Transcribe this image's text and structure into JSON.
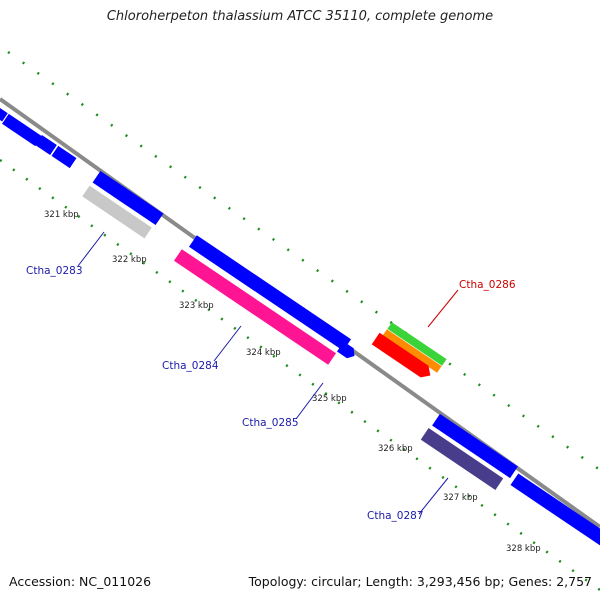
{
  "title": "Chloroherpeton thalassium ATCC 35110, complete genome",
  "footer": {
    "accession": "Accession: NC_011026",
    "stats": "Topology: circular; Length: 3,293,456 bp; Genes: 2,757"
  },
  "ticks": [
    "321 kbp",
    "322 kbp",
    "323 kbp",
    "324 kbp",
    "325 kbp",
    "326 kbp",
    "327 kbp",
    "328 kbp"
  ],
  "gene_labels": [
    {
      "name": "Ctha_0283",
      "color": "#1a1aa6"
    },
    {
      "name": "Ctha_0284",
      "color": "#1a1aa6"
    },
    {
      "name": "Ctha_0285",
      "color": "#1a1aa6"
    },
    {
      "name": "Ctha_0286",
      "color": "#cc0000"
    },
    {
      "name": "Ctha_0287",
      "color": "#1a1aa6"
    }
  ],
  "colors": {
    "backbone": "#8a8a8a",
    "cds_default": "#0000ff",
    "Ctha_0283": "#c8c8c8",
    "Ctha_0284": "#ff1493",
    "Ctha_0286_a": "#3ad43a",
    "Ctha_0286_b": "#ff8c00",
    "Ctha_0286_c": "#ff0000",
    "Ctha_0287": "#483d8b",
    "dots": "#1e8c1e"
  }
}
